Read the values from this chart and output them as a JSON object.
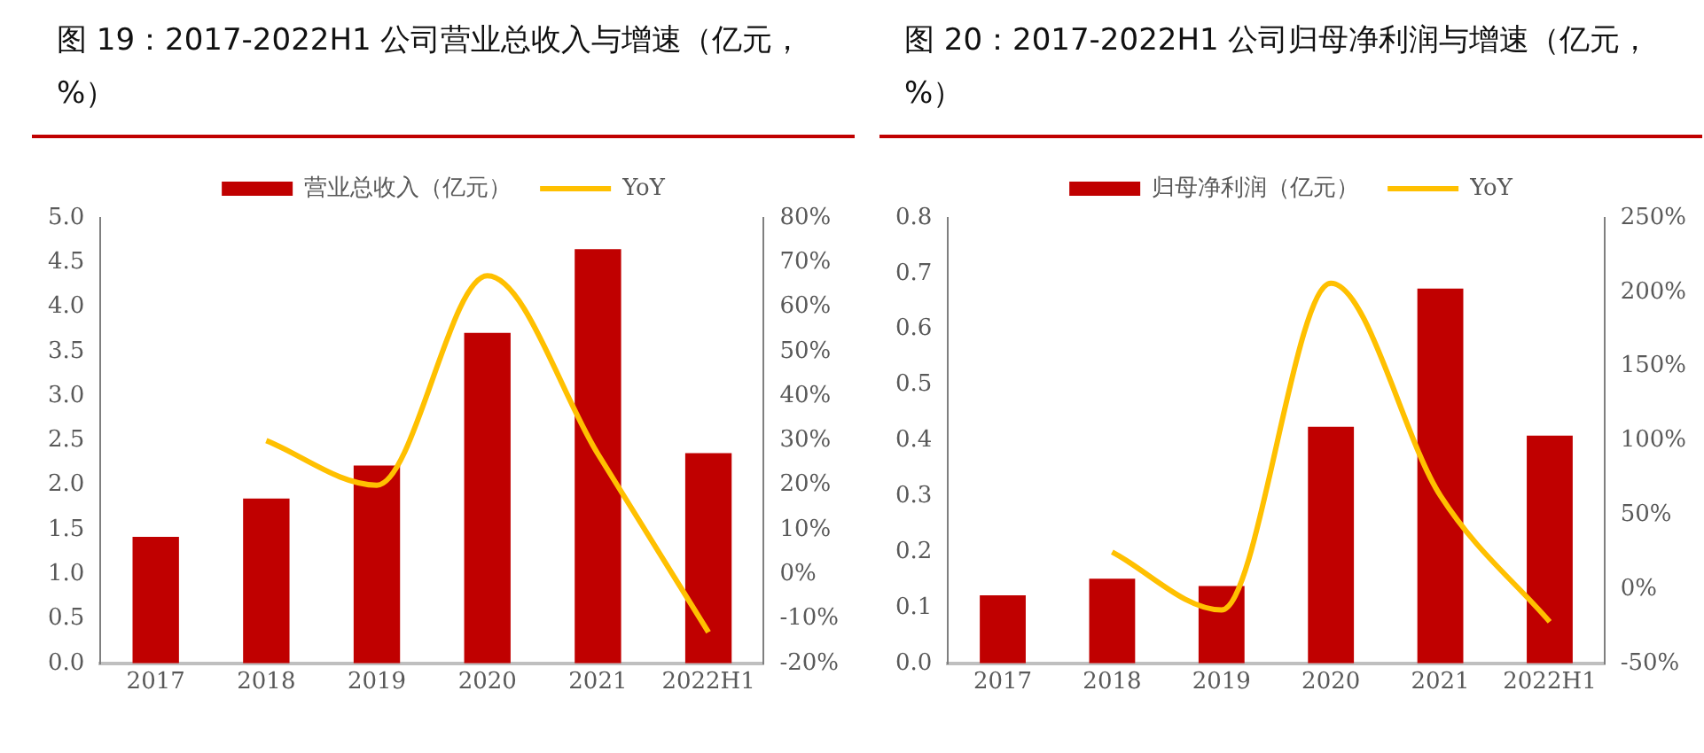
{
  "chart_data": [
    {
      "type": "bar",
      "title": "图 19：2017-2022H1 公司营业总收入与增速（亿元，%）",
      "categories": [
        "2017",
        "2018",
        "2019",
        "2020",
        "2021",
        "2022H1"
      ],
      "series": [
        {
          "name": "营业总收入（亿元）",
          "color": "#c00000",
          "values": [
            1.42,
            1.85,
            2.22,
            3.71,
            4.65,
            2.36
          ]
        },
        {
          "name": "YoY",
          "type": "line",
          "axis": "y2",
          "color": "#ffc000",
          "values": [
            null,
            30,
            20,
            67,
            27,
            -13
          ]
        }
      ],
      "ylim": [
        0,
        5
      ],
      "yticks": [
        {
          "value": 0,
          "label": "0.0"
        },
        {
          "value": 0.5,
          "label": "0.5"
        },
        {
          "value": 1,
          "label": "1.0"
        },
        {
          "value": 1.5,
          "label": "1.5"
        },
        {
          "value": 2,
          "label": "2.0"
        },
        {
          "value": 2.5,
          "label": "2.5"
        },
        {
          "value": 3,
          "label": "3.0"
        },
        {
          "value": 3.5,
          "label": "3.5"
        },
        {
          "value": 4,
          "label": "4.0"
        },
        {
          "value": 4.5,
          "label": "4.5"
        },
        {
          "value": 5,
          "label": "5.0"
        }
      ],
      "y2lim": [
        -20,
        80
      ],
      "y2ticks": [
        {
          "value": -20,
          "label": "-20%"
        },
        {
          "value": -10,
          "label": "-10%"
        },
        {
          "value": 0,
          "label": "0%"
        },
        {
          "value": 10,
          "label": "10%"
        },
        {
          "value": 20,
          "label": "20%"
        },
        {
          "value": 30,
          "label": "30%"
        },
        {
          "value": 40,
          "label": "40%"
        },
        {
          "value": 50,
          "label": "50%"
        },
        {
          "value": 60,
          "label": "60%"
        },
        {
          "value": 70,
          "label": "70%"
        },
        {
          "value": 80,
          "label": "80%"
        }
      ],
      "legend": "top",
      "grid": false
    },
    {
      "type": "bar",
      "title": "图 20：2017-2022H1 公司归母净利润与增速（亿元，%）",
      "categories": [
        "2017",
        "2018",
        "2019",
        "2020",
        "2021",
        "2022H1"
      ],
      "series": [
        {
          "name": "归母净利润（亿元）",
          "color": "#c00000",
          "values": [
            0.122,
            0.152,
            0.139,
            0.425,
            0.673,
            0.409
          ]
        },
        {
          "name": "YoY",
          "type": "line",
          "axis": "y2",
          "color": "#ffc000",
          "values": [
            null,
            25,
            -14,
            206,
            63,
            -22
          ]
        }
      ],
      "ylim": [
        0,
        0.8
      ],
      "yticks": [
        {
          "value": 0,
          "label": "0.0"
        },
        {
          "value": 0.1,
          "label": "0.1"
        },
        {
          "value": 0.2,
          "label": "0.2"
        },
        {
          "value": 0.3,
          "label": "0.3"
        },
        {
          "value": 0.4,
          "label": "0.4"
        },
        {
          "value": 0.5,
          "label": "0.5"
        },
        {
          "value": 0.6,
          "label": "0.6"
        },
        {
          "value": 0.7,
          "label": "0.7"
        },
        {
          "value": 0.8,
          "label": "0.8"
        }
      ],
      "y2lim": [
        -50,
        250
      ],
      "y2ticks": [
        {
          "value": -50,
          "label": "-50%"
        },
        {
          "value": 0,
          "label": "0%"
        },
        {
          "value": 50,
          "label": "50%"
        },
        {
          "value": 100,
          "label": "100%"
        },
        {
          "value": 150,
          "label": "150%"
        },
        {
          "value": 200,
          "label": "200%"
        },
        {
          "value": 250,
          "label": "250%"
        }
      ],
      "legend": "top",
      "grid": false
    }
  ]
}
